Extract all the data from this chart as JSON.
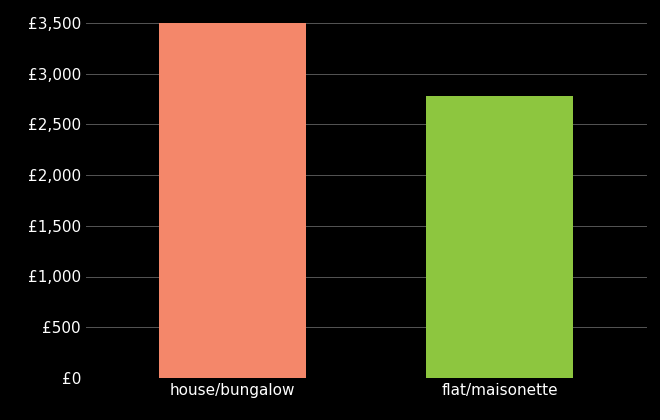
{
  "categories": [
    "house/bungalow",
    "flat/maisonette"
  ],
  "values": [
    3500,
    2780
  ],
  "bar_colors": [
    "#F4876A",
    "#8DC63F"
  ],
  "background_color": "#000000",
  "text_color": "#ffffff",
  "grid_color": "#555555",
  "ylim": [
    0,
    3600
  ],
  "yticks": [
    0,
    500,
    1000,
    1500,
    2000,
    2500,
    3000,
    3500
  ],
  "ytick_labels": [
    "£0",
    "£500",
    "£1,000",
    "£1,500",
    "£2,000",
    "£2,500",
    "£3,000",
    "£3,500"
  ],
  "bar_width": 0.55,
  "xlabel_fontsize": 11,
  "ytick_fontsize": 11
}
